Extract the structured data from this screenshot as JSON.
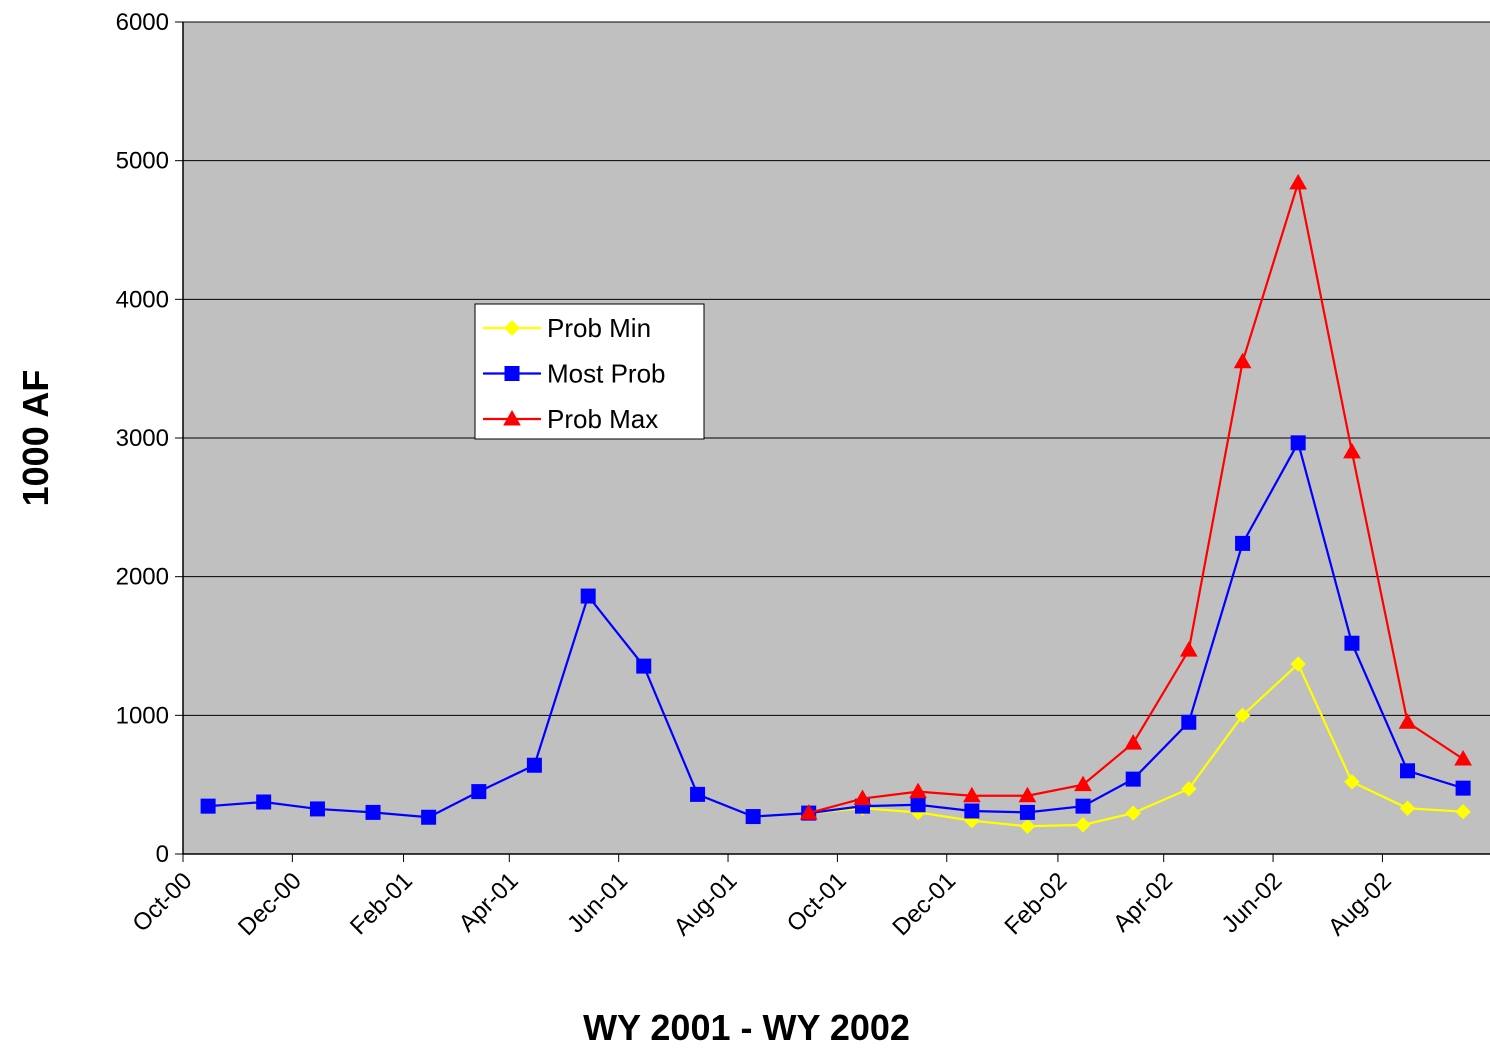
{
  "chart_data": {
    "type": "line",
    "title": "",
    "xlabel": "WY 2001 - WY 2002",
    "ylabel": "1000 AF",
    "ylim": [
      0,
      6000
    ],
    "yticks": [
      0,
      1000,
      2000,
      3000,
      4000,
      5000,
      6000
    ],
    "xlim": [
      "2000-10-01",
      "2002-09-30"
    ],
    "xticks": [
      "Oct-00",
      "Dec-00",
      "Feb-01",
      "Apr-01",
      "Jun-01",
      "Aug-01",
      "Oct-01",
      "Dec-01",
      "Feb-02",
      "Apr-02",
      "Jun-02",
      "Aug-02"
    ],
    "grid": true,
    "plot_background": "#c0c0c0",
    "legend_position": "upper-left",
    "x": [
      "2000-10-15",
      "2000-11-15",
      "2000-12-15",
      "2001-01-15",
      "2001-02-15",
      "2001-03-15",
      "2001-04-15",
      "2001-05-15",
      "2001-06-15",
      "2001-07-15",
      "2001-08-15",
      "2001-09-15",
      "2001-10-15",
      "2001-11-15",
      "2001-12-15",
      "2002-01-15",
      "2002-02-15",
      "2002-03-15",
      "2002-04-15",
      "2002-05-15",
      "2002-06-15",
      "2002-07-15",
      "2002-08-15",
      "2002-09-15"
    ],
    "series": [
      {
        "name": "Prob Min",
        "color": "#ffff00",
        "marker": "diamond",
        "values": [
          null,
          null,
          null,
          null,
          null,
          null,
          null,
          null,
          null,
          null,
          null,
          295,
          330,
          300,
          240,
          200,
          210,
          295,
          470,
          1000,
          1370,
          520,
          330,
          305
        ]
      },
      {
        "name": "Most Prob",
        "color": "#0000ff",
        "marker": "square",
        "values": [
          345,
          375,
          325,
          300,
          265,
          450,
          640,
          1860,
          1355,
          430,
          270,
          295,
          345,
          355,
          310,
          300,
          345,
          540,
          950,
          2240,
          2965,
          1520,
          600,
          475
        ]
      },
      {
        "name": "Prob Max",
        "color": "#ff0000",
        "marker": "triangle",
        "values": [
          null,
          null,
          null,
          null,
          null,
          null,
          null,
          null,
          null,
          null,
          null,
          295,
          400,
          450,
          420,
          420,
          500,
          800,
          1470,
          3550,
          4840,
          2900,
          950,
          685
        ]
      }
    ]
  }
}
